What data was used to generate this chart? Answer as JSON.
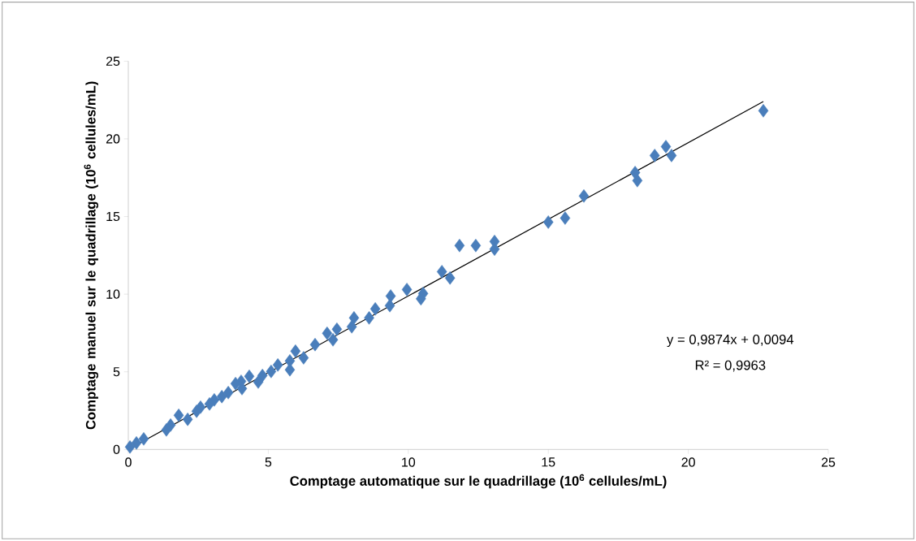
{
  "chart_data": {
    "type": "scatter",
    "xlabel": "Comptage automatique sur le quadrillage (10$^{6}$ cellules/mL)",
    "ylabel": "Comptage manuel sur le quadrillage (10$^{6}$ cellules/mL)",
    "annotations": [
      "y = 0,9874x + 0,0094",
      "R² = 0,9963"
    ],
    "xlim": [
      0,
      25
    ],
    "ylim": [
      0,
      25
    ],
    "xticks": [
      0,
      5,
      10,
      15,
      20,
      25
    ],
    "yticks": [
      0,
      5,
      10,
      15,
      20,
      25
    ],
    "grid": false,
    "marker": "diamond",
    "series": [
      {
        "color": "#4a7ebb",
        "x": [
          22.68,
          19.4,
          19.2,
          18.8,
          18.18,
          18.1,
          16.27,
          15.6,
          15.0,
          13.08,
          13.08,
          12.41,
          11.83,
          11.49,
          11.2,
          10.53,
          10.45,
          9.95,
          9.37,
          9.34,
          8.82,
          8.6,
          8.06,
          7.98,
          7.45,
          7.31,
          7.1,
          6.67,
          6.26,
          5.97,
          5.77,
          5.77,
          5.34,
          5.1,
          4.79,
          4.64,
          4.32,
          4.03,
          4.06,
          3.83,
          3.57,
          3.34,
          3.07,
          2.9,
          2.58,
          2.44,
          2.12,
          1.8,
          1.51,
          1.36,
          0.55,
          0.29,
          0.06
        ],
        "values": [
          21.81,
          18.93,
          19.5,
          18.93,
          17.31,
          17.83,
          16.32,
          14.9,
          14.64,
          13.39,
          12.9,
          13.13,
          13.13,
          11.04,
          11.45,
          10.04,
          9.7,
          10.3,
          9.88,
          9.26,
          9.05,
          8.47,
          8.47,
          7.9,
          7.74,
          7.06,
          7.48,
          6.75,
          5.9,
          6.33,
          5.7,
          5.13,
          5.44,
          5.02,
          4.76,
          4.34,
          4.71,
          4.39,
          3.92,
          4.24,
          3.66,
          3.4,
          3.19,
          2.93,
          2.72,
          2.46,
          1.94,
          2.2,
          1.57,
          1.26,
          0.68,
          0.42,
          0.16
        ]
      },
      {
        "type": "line",
        "color": "#000000",
        "marker": "none",
        "x": [
          0.06,
          22.68
        ],
        "values": [
          0.07,
          22.4
        ]
      }
    ]
  }
}
